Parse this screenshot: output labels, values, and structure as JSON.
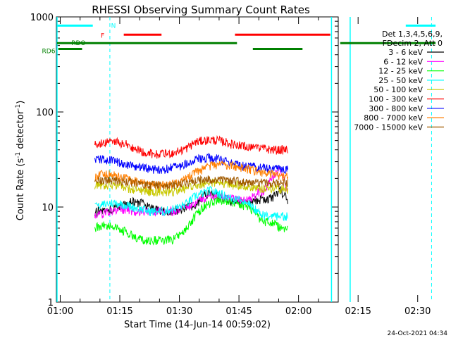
{
  "chart_data": {
    "type": "line",
    "title": "RHESSI Observing Summary Count Rates",
    "xlabel": "Start Time (14-Jun-14 00:59:02)",
    "ylabel": "Count Rate (s",
    "ylabel_sup": "-1",
    "ylabel_tail": " detector",
    "ylabel_end": ")",
    "yscale": "log",
    "ylim": [
      1,
      1000
    ],
    "xlim_min": [
      59.03,
      130
    ],
    "y_ticks": [
      "1",
      "10",
      "100",
      "1000"
    ],
    "x_ticks": [
      {
        "label": "01:00",
        "m": 60
      },
      {
        "label": "01:15",
        "m": 75
      },
      {
        "label": "01:30",
        "m": 90
      },
      {
        "label": "01:45",
        "m": 105
      },
      {
        "label": "02:00",
        "m": 120
      },
      {
        "label": "02:15",
        "m": 135
      },
      {
        "label": "02:30",
        "m": 150
      }
    ],
    "legend_header": [
      "Det 1,3,4,5,6,9,",
      "FDecim 2, Att 0"
    ],
    "series": [
      {
        "name": "3 - 6 keV",
        "color": "#000000",
        "values": [
          9,
          9,
          9.5,
          10,
          11,
          11.5,
          11,
          10,
          9.5,
          9,
          9,
          9.5,
          10,
          10,
          13,
          14,
          13,
          12,
          11,
          11,
          11.5,
          12,
          12,
          12.5,
          15,
          12
        ]
      },
      {
        "name": "6 - 12 keV",
        "color": "#ff00ff",
        "values": [
          8,
          8.5,
          9,
          9.5,
          9.5,
          9,
          9,
          9,
          9,
          9,
          9,
          9.5,
          10,
          11,
          12,
          13,
          13,
          12.5,
          12,
          12,
          12,
          14,
          15,
          20,
          25,
          14
        ]
      },
      {
        "name": "12 - 25 keV",
        "color": "#00ff00",
        "values": [
          6,
          6.5,
          6.5,
          6,
          5.5,
          5,
          4.5,
          4.5,
          4.5,
          4.5,
          4.5,
          5,
          6,
          8,
          10,
          11,
          12,
          11.5,
          11,
          10.5,
          10,
          8,
          7,
          7,
          6,
          6
        ]
      },
      {
        "name": "25 - 50 keV",
        "color": "#00ffff",
        "values": [
          10,
          10.5,
          11,
          11,
          10.5,
          10,
          9.5,
          9,
          9,
          9,
          9.5,
          10,
          11,
          13,
          14,
          15,
          14,
          13,
          12,
          12,
          11,
          9,
          8,
          8,
          8,
          8
        ]
      },
      {
        "name": "50 - 100 keV",
        "color": "#c8c800",
        "values": [
          16.5,
          17,
          17,
          17,
          16,
          15.5,
          15,
          14.5,
          14.5,
          14.5,
          14.5,
          15,
          16,
          17,
          17.5,
          18,
          18,
          17.5,
          17,
          17,
          16.5,
          16,
          15.5,
          15.5,
          15.5,
          15.5
        ]
      },
      {
        "name": "100 - 300 keV",
        "color": "#ff0000",
        "values": [
          45,
          47,
          48,
          48,
          46,
          42,
          39,
          37,
          36,
          36,
          37,
          39,
          42,
          48,
          50,
          51,
          50,
          48,
          45,
          44,
          43,
          42,
          41,
          40,
          40,
          40
        ]
      },
      {
        "name": "300 - 800 keV",
        "color": "#0000ff",
        "values": [
          31,
          32,
          31,
          30,
          28,
          27,
          26,
          25,
          25,
          25,
          26,
          27,
          29,
          32,
          33,
          33,
          32,
          30,
          28,
          27,
          27,
          26,
          26,
          25,
          25,
          25
        ]
      },
      {
        "name": "800 - 7000 keV",
        "color": "#ff7f00",
        "values": [
          21,
          22,
          22,
          21,
          20,
          19,
          18,
          17.5,
          17,
          17,
          17.5,
          18,
          20,
          23,
          25,
          27,
          28,
          28,
          27,
          26,
          25,
          24,
          23,
          22,
          21,
          21
        ]
      },
      {
        "name": "7000 - 15000 keV",
        "color": "#a05a00",
        "values": [
          19,
          19,
          19,
          19,
          18.5,
          18,
          17.5,
          17,
          17,
          17,
          17,
          17.5,
          18,
          19,
          19.5,
          19.5,
          19.5,
          19,
          19,
          18.5,
          18.5,
          18,
          18,
          18,
          18,
          18
        ]
      }
    ],
    "data_start_m": 68.7,
    "data_end_m": 117.3,
    "data_segments": [
      [
        68.7,
        103.5
      ],
      [
        103.5,
        117.3
      ]
    ],
    "bars": [
      {
        "label": "N",
        "color": "#00ffff",
        "segments": [
          [
            59.2,
            68.2
          ],
          [
            147.0,
            154.5
          ]
        ],
        "level": 810
      },
      {
        "label": "F",
        "color": "#ff0000",
        "segments": [
          [
            76.0,
            85.5
          ],
          [
            104.0,
            128.0
          ]
        ],
        "level": 650
      },
      {
        "label": "RDO",
        "color": "#008000",
        "segments": [
          [
            59.2,
            104.5
          ],
          [
            130.5,
            154.5
          ]
        ],
        "level": 530
      },
      {
        "label": "RD6",
        "color": "#008000",
        "segments": [
          [
            59.5,
            65.5
          ],
          [
            108.5,
            121.0
          ]
        ],
        "level": 460
      }
    ],
    "vlines_solid": [
      59.2,
      128.3,
      133.0
    ],
    "vlines_dashed": [
      72.5,
      153.5
    ],
    "footer": "24-Oct-2021 04:34"
  }
}
